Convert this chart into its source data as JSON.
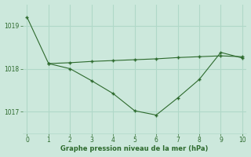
{
  "line1_x": [
    0,
    1,
    2,
    3,
    4,
    5,
    6,
    7,
    8,
    9,
    10
  ],
  "line1_y": [
    1019.2,
    1018.12,
    1018.0,
    1017.72,
    1017.42,
    1017.02,
    1016.92,
    1017.32,
    1017.75,
    1018.38,
    1018.25
  ],
  "line2_x": [
    1,
    2,
    3,
    4,
    5,
    6,
    7,
    8,
    9,
    10
  ],
  "line2_y": [
    1018.12,
    1018.14,
    1018.17,
    1018.19,
    1018.21,
    1018.23,
    1018.26,
    1018.28,
    1018.3,
    1018.28
  ],
  "line_color": "#2d6a2d",
  "bg_color": "#cce8dc",
  "grid_color": "#b0d8c8",
  "xlabel": "Graphe pression niveau de la mer (hPa)",
  "xlim": [
    -0.2,
    10.2
  ],
  "ylim": [
    1016.5,
    1019.5
  ],
  "yticks": [
    1017,
    1018,
    1019
  ],
  "xticks": [
    0,
    1,
    2,
    3,
    4,
    5,
    6,
    7,
    8,
    9,
    10
  ]
}
